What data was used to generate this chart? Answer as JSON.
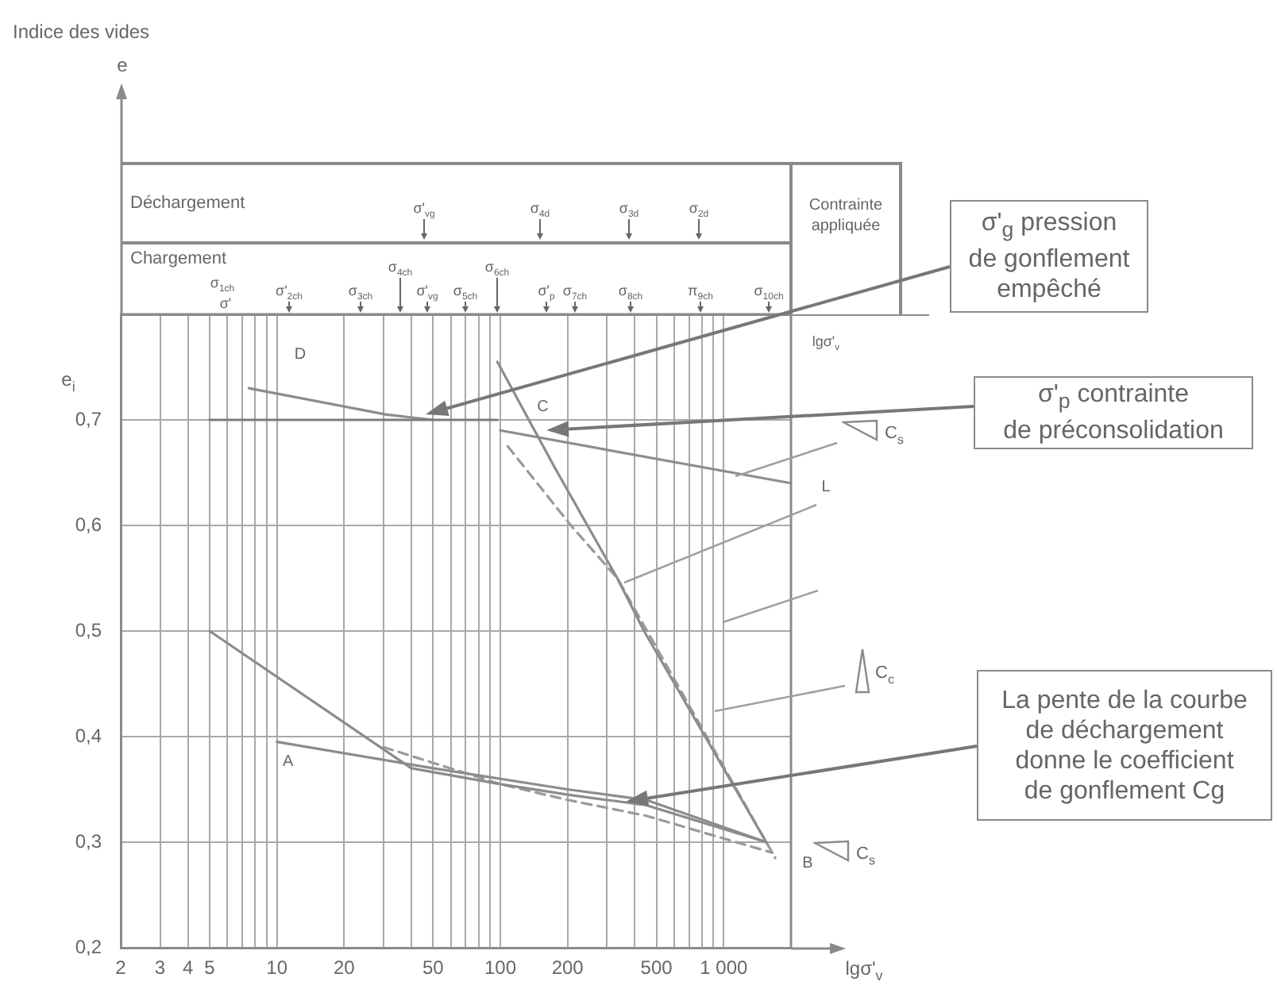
{
  "chart_data": {
    "type": "line",
    "xlabel": "lgσ'$_{v}$",
    "log": "x",
    "xlim": [
      2,
      2000
    ],
    "xticks": [
      2,
      3,
      4,
      5,
      {
        "value": 6,
        "label": null
      },
      {
        "value": 7,
        "label": null
      },
      {
        "value": 8,
        "label": null
      },
      {
        "value": 9,
        "label": null
      },
      10,
      20,
      {
        "value": 30,
        "label": null
      },
      {
        "value": 40,
        "label": null
      },
      50,
      {
        "value": 60,
        "label": null
      },
      {
        "value": 70,
        "label": null
      },
      {
        "value": 80,
        "label": null
      },
      {
        "value": 90,
        "label": null
      },
      100,
      200,
      {
        "value": 300,
        "label": null
      },
      {
        "value": 400,
        "label": null
      },
      500,
      {
        "value": 600,
        "label": null
      },
      {
        "value": 700,
        "label": null
      },
      {
        "value": 800,
        "label": null
      },
      {
        "value": 900,
        "label": null
      },
      {
        "value": 1000,
        "label": "1 000"
      }
    ],
    "ylim": [
      0.2,
      0.8
    ],
    "yticks": [
      {
        "value": 0.2,
        "label": "0,2"
      },
      {
        "value": 0.3,
        "label": "0,3"
      },
      {
        "value": 0.4,
        "label": "0,4"
      },
      {
        "value": 0.5,
        "label": "0,5"
      },
      {
        "value": 0.6,
        "label": "0,6"
      },
      {
        "value": 0.7,
        "label": "0,7"
      }
    ],
    "grid": true,
    "marker": "none",
    "series": [
      {
        "color": "#7c7c7c",
        "x": [
          5,
          97
        ],
        "values": [
          0.7,
          0.7
        ]
      },
      {
        "color": "#8c8c8c",
        "x": [
          7.5,
          31,
          50
        ],
        "values": [
          0.73,
          0.705,
          0.7
        ]
      },
      {
        "color": "#8c8c8c",
        "x": [
          100,
          2000
        ],
        "values": [
          0.69,
          0.64
        ]
      },
      {
        "color": "#8c8c8c",
        "x": [
          97,
          175,
          334,
          440,
          1550
        ],
        "values": [
          0.755,
          0.655,
          0.55,
          0.5,
          0.3
        ]
      },
      {
        "color": "#9a9a9a",
        "line_style": "dashed",
        "x": [
          108,
          207,
          334,
          1700
        ],
        "values": [
          0.675,
          0.6,
          0.55,
          0.285
        ]
      },
      {
        "color": "#8c8c8c",
        "x": [
          5,
          40,
          100,
          200,
          450,
          1550
        ],
        "values": [
          0.5,
          0.37,
          0.355,
          0.345,
          0.335,
          0.3
        ]
      },
      {
        "color": "#8c8c8c",
        "x": [
          10,
          50,
          200,
          450,
          1550
        ],
        "values": [
          0.395,
          0.37,
          0.35,
          0.34,
          0.3
        ]
      },
      {
        "color": "#9a9a9a",
        "line_style": "dashed",
        "x": [
          30,
          100,
          200,
          450,
          1650
        ],
        "values": [
          0.39,
          0.355,
          0.34,
          0.325,
          0.29
        ]
      }
    ],
    "annotations": [
      "Indice des vides",
      "e",
      "e$_{i}$",
      "Déchargement",
      "σ'$_{vg}$",
      "σ$_{4d}$",
      "σ$_{3d}$",
      "σ$_{2d}$",
      "Chargement",
      "σ$_{1ch}$",
      "σ'",
      "σ'$_{2ch}$",
      "σ$_{3ch}$",
      "σ$_{4ch}$",
      "σ'$_{vg}$",
      "σ$_{5ch}$",
      "σ$_{6ch}$",
      "σ'$_{p}$",
      "σ$_{7ch}$",
      "σ$_{8ch}$",
      "π$_{9ch}$",
      "σ$_{10ch}$",
      "Contrainte\nappliquée",
      "lgσ'$_{v}$",
      "D",
      "C$_{s}$",
      "C$_{c}$",
      "C$_{s}$",
      "σ'$_{g}$ pression\nde gonflement\nempêché",
      "σ'$_{p}$ contrainte\nde préconsolidation",
      "La pente de la courbe\nde déchargement\ndonne le coefficient\nde gonflement Cg",
      {
        "text": "A",
        "x": 10,
        "y": 0.395
      },
      {
        "text": "C",
        "x": 160,
        "y": 0.69
      },
      {
        "text": "B",
        "x": 1550,
        "y": 0.3
      },
      {
        "text": "L",
        "x": 2000,
        "y": 0.64
      }
    ]
  }
}
